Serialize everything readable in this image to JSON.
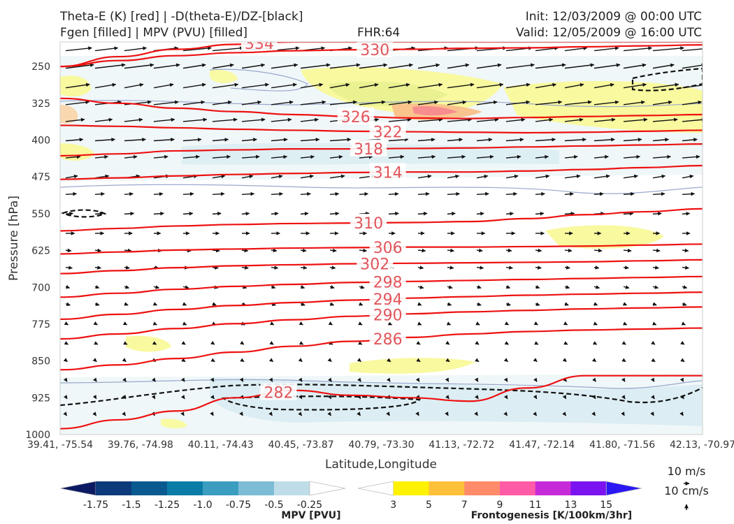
{
  "header": {
    "left_line1": "Theta-E (K) [red] | -D(theta-E)/DZ-[black]",
    "left_line2": "Fgen [filled] | MPV (PVU) [filled]",
    "center": "FHR:64",
    "right_line1": "Init: 12/03/2009 @ 00:00 UTC",
    "right_line2": "Valid: 12/05/2009 @ 16:00 UTC"
  },
  "chart_data": {
    "type": "cross-section",
    "xlabel": "Latitude,Longitude",
    "ylabel": "Pressure [hPa]",
    "y_range": [
      1000,
      200
    ],
    "y_ticks": [
      250,
      325,
      400,
      475,
      550,
      625,
      700,
      775,
      850,
      925,
      1000
    ],
    "x_ticks": [
      "39.41, -75.54",
      "39.76, -74.98",
      "40.11, -74.43",
      "40.45, -73.87",
      "40.79, -73.30",
      "41.13, -72.72",
      "41.47, -72.14",
      "41.80, -71.56",
      "42.13, -70.97"
    ],
    "theta_e_contours": [
      {
        "value": 334,
        "label": "334",
        "pressures": [
          250,
          230,
          215,
          205,
          200,
          200,
          200,
          200,
          200,
          200,
          200,
          200
        ]
      },
      {
        "value": 330,
        "label": "330",
        "pressures": [
          250,
          238,
          228,
          222,
          218,
          216,
          215,
          213,
          212,
          210,
          208,
          206
        ]
      },
      {
        "value": 326,
        "label": "326",
        "pressures": [
          315,
          325,
          335,
          342,
          348,
          352,
          355,
          356,
          354,
          352,
          350,
          348
        ]
      },
      {
        "value": 322,
        "label": "322",
        "pressures": [
          370,
          372,
          375,
          378,
          380,
          382,
          383,
          384,
          385,
          384,
          382,
          380
        ]
      },
      {
        "value": 318,
        "label": "318",
        "pressures": [
          432,
          428,
          422,
          420,
          418,
          418,
          417,
          416,
          414,
          412,
          410,
          408
        ]
      },
      {
        "value": 314,
        "label": "314",
        "pressures": [
          480,
          477,
          473,
          470,
          468,
          466,
          465,
          465,
          463,
          460,
          456,
          452
        ]
      },
      {
        "value": 310,
        "label": "310",
        "pressures": [
          585,
          580,
          575,
          572,
          570,
          569,
          568,
          566,
          560,
          552,
          546,
          540
        ]
      },
      {
        "value": 306,
        "label": "306",
        "pressures": [
          632,
          628,
          624,
          622,
          620,
          619,
          618,
          618,
          617,
          616,
          614,
          612
        ]
      },
      {
        "value": 302,
        "label": "302",
        "pressures": [
          672,
          666,
          660,
          656,
          654,
          652,
          651,
          650,
          649,
          648,
          646,
          644
        ]
      },
      {
        "value": 298,
        "label": "298",
        "pressures": [
          720,
          712,
          704,
          698,
          694,
          690,
          688,
          686,
          684,
          682,
          680,
          678
        ]
      },
      {
        "value": 294,
        "label": "294",
        "pressures": [
          765,
          755,
          745,
          737,
          731,
          726,
          722,
          719,
          716,
          714,
          712,
          710
        ]
      },
      {
        "value": 290,
        "label": "290",
        "pressures": [
          805,
          795,
          784,
          774,
          766,
          759,
          754,
          750,
          747,
          744,
          742,
          740
        ]
      },
      {
        "value": 286,
        "label": "286",
        "pressures": [
          868,
          858,
          845,
          832,
          820,
          810,
          802,
          795,
          790,
          787,
          785,
          783
        ]
      },
      {
        "value": 282,
        "label": "282",
        "pressures": [
          988,
          970,
          952,
          925,
          910,
          920,
          925,
          932,
          905,
          880,
          880,
          880
        ]
      }
    ],
    "mpv_colorbar": {
      "label": "MPV [PVU]",
      "ticks": [
        "-1.75",
        "-1.5",
        "-1.25",
        "-1.0",
        "-0.75",
        "-0.5",
        "-0.25"
      ],
      "colors": [
        "#0c1a63",
        "#0d3a7a",
        "#0a5a8f",
        "#0a7ca6",
        "#3b9dc0",
        "#7dbcd5",
        "#bedde8",
        "#ffffff"
      ]
    },
    "fgen_colorbar": {
      "label": "Frontogenesis [K/100km/3hr]",
      "ticks": [
        "3",
        "5",
        "7",
        "9",
        "11",
        "13",
        "15"
      ],
      "colors": [
        "#ffffff",
        "#fff200",
        "#ffc03a",
        "#ff8b6a",
        "#ff5ba6",
        "#c52bd8",
        "#7a13f0",
        "#2a18f5"
      ]
    },
    "vector_reference": {
      "horizontal": "10 m/s",
      "vertical": "10 cm/s"
    }
  }
}
